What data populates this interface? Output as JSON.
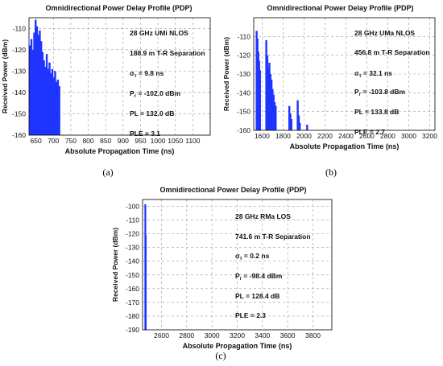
{
  "chart_data": [
    {
      "type": "bar",
      "title": "Omnidirectional Power Delay Profile (PDP)",
      "xlabel": "Absolute Propagation Time (ns)",
      "ylabel": "Received Power (dBm)",
      "caption": "(a)",
      "xlim": [
        630,
        1150
      ],
      "ylim": [
        -160,
        -105
      ],
      "xticks": [
        650,
        700,
        750,
        800,
        850,
        900,
        950,
        1000,
        1050,
        1100
      ],
      "yticks": [
        -160,
        -150,
        -140,
        -130,
        -120,
        -110
      ],
      "grid": true,
      "bar_color": "#1f35ff",
      "annotations": [
        "28 GHz UMi NLOS",
        "188.9 m T-R Separation",
        "στ = 9.8 ns",
        "Pr = -102.0 dBm",
        "PL = 132.0 dB",
        "PLE = 3.1"
      ],
      "x": [
        633,
        637,
        641,
        645,
        649,
        653,
        657,
        661,
        665,
        669,
        673,
        677,
        681,
        685,
        689,
        693,
        697,
        701,
        705,
        709,
        713,
        717
      ],
      "values": [
        -118,
        -115,
        -120,
        -112,
        -106,
        -109,
        -113,
        -111,
        -116,
        -121,
        -125,
        -128,
        -122,
        -129,
        -126,
        -131,
        -129,
        -133,
        -130,
        -135,
        -134,
        -137
      ]
    },
    {
      "type": "bar",
      "title": "Omnidirectional Power Delay Profile (PDP)",
      "xlabel": "Absolute Propagation Time (ns)",
      "ylabel": "Received Power (dBm)",
      "caption": "(b)",
      "xlim": [
        1520,
        3250
      ],
      "ylim": [
        -160,
        -100
      ],
      "xticks": [
        1600,
        1800,
        2000,
        2200,
        2400,
        2600,
        2800,
        3000,
        3200
      ],
      "yticks": [
        -160,
        -150,
        -140,
        -130,
        -120,
        -110
      ],
      "grid": true,
      "bar_color": "#1f35ff",
      "annotations": [
        "28 GHz UMa NLOS",
        "456.8 m T-R Separation",
        "στ = 32.1 ns",
        "Pr = -103.8 dBm",
        "PL = 133.8 dB",
        "PLE = 2.7"
      ],
      "x": [
        1548,
        1556,
        1564,
        1572,
        1580,
        1640,
        1650,
        1660,
        1670,
        1680,
        1690,
        1700,
        1710,
        1720,
        1730,
        1860,
        1870,
        1880,
        1940,
        1950,
        1960,
        2030
      ],
      "values": [
        -107,
        -111,
        -118,
        -123,
        -128,
        -112,
        -120,
        -127,
        -124,
        -130,
        -133,
        -138,
        -141,
        -145,
        -147,
        -147,
        -151,
        -154,
        -144,
        -152,
        -156,
        -157
      ]
    },
    {
      "type": "bar",
      "title": "Omnidirectional Power Delay Profile (PDP)",
      "xlabel": "Absolute Propagation Time (ns)",
      "ylabel": "Received Power (dBm)",
      "caption": "(c)",
      "xlim": [
        2450,
        3950
      ],
      "ylim": [
        -190,
        -95
      ],
      "xticks": [
        2600,
        2800,
        3000,
        3200,
        3400,
        3600,
        3800
      ],
      "yticks": [
        -190,
        -180,
        -170,
        -160,
        -150,
        -140,
        -130,
        -120,
        -110,
        -100
      ],
      "grid": true,
      "bar_color": "#1f35ff",
      "annotations": [
        "28 GHz RMa LOS",
        "741.6 m T-R Separation",
        "στ = 0.2 ns",
        "Pr = -98.4 dBm",
        "PL = 128.4 dB",
        "PLE = 2.3"
      ],
      "x": [
        2472,
        2475
      ],
      "values": [
        -98.4,
        -121
      ]
    }
  ]
}
